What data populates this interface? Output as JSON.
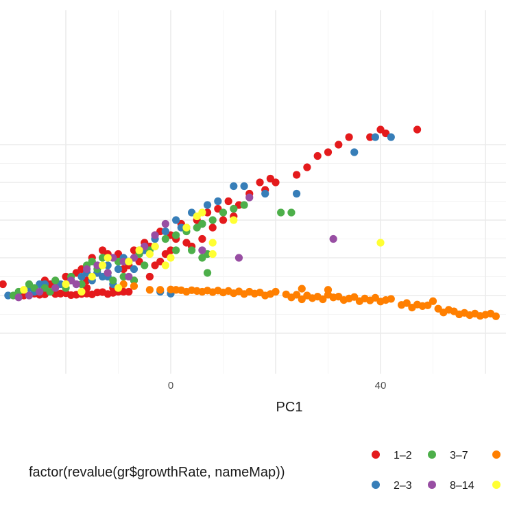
{
  "chart_data": {
    "type": "scatter",
    "title": "",
    "xlabel": "PC1",
    "ylabel": "",
    "xlim": [
      -32,
      63
    ],
    "ylim": [
      -20,
      45
    ],
    "x_ticks": [
      -20,
      0,
      20,
      40,
      60
    ],
    "x_tick_labels": [
      "",
      "0",
      "",
      "40",
      ""
    ],
    "y_ticks": [
      -10,
      0,
      10,
      20,
      30,
      40
    ],
    "grid": true,
    "legend": {
      "title": "factor(revalue(gr$growthRate, nameMap))",
      "position": "bottom",
      "entries": [
        {
          "label": "1–2",
          "color": "#E41A1C"
        },
        {
          "label": "2–3",
          "color": "#377EB8"
        },
        {
          "label": "3–7",
          "color": "#4DAF4A"
        },
        {
          "label": "8–14",
          "color": "#984EA3"
        },
        {
          "label": "",
          "color": "#FF7F00"
        },
        {
          "label": "",
          "color": "#FFFF33"
        }
      ]
    },
    "series": [
      {
        "name": "1–2",
        "color": "#E41A1C",
        "points": [
          [
            -32,
            3
          ],
          [
            -28,
            0
          ],
          [
            -26,
            0.5
          ],
          [
            -24,
            0.3
          ],
          [
            -22,
            0.4
          ],
          [
            -20,
            0.6
          ],
          [
            -18,
            0.2
          ],
          [
            -16,
            0.5
          ],
          [
            -14,
            0.8
          ],
          [
            -12,
            0.4
          ],
          [
            -10,
            1
          ],
          [
            -25,
            0.2
          ],
          [
            -21,
            0.5
          ],
          [
            -15,
            0.3
          ],
          [
            -19,
            0.1
          ],
          [
            -13,
            0.9
          ],
          [
            -11,
            0.7
          ],
          [
            -8,
            1
          ],
          [
            -17,
            0.4
          ],
          [
            -20,
            5
          ],
          [
            -18,
            6
          ],
          [
            -16,
            4
          ],
          [
            -22,
            3
          ],
          [
            -17,
            7
          ],
          [
            -15,
            10
          ],
          [
            -12,
            11
          ],
          [
            -10,
            11
          ],
          [
            -7,
            12
          ],
          [
            -5,
            14
          ],
          [
            -3,
            16
          ],
          [
            -4,
            13
          ],
          [
            -2,
            17
          ],
          [
            0,
            16
          ],
          [
            2,
            19
          ],
          [
            3,
            18
          ],
          [
            5,
            20
          ],
          [
            7,
            22
          ],
          [
            9,
            23
          ],
          [
            11,
            25
          ],
          [
            13,
            24
          ],
          [
            15,
            27
          ],
          [
            18,
            28
          ],
          [
            20,
            30
          ],
          [
            17,
            30
          ],
          [
            19,
            31
          ],
          [
            24,
            32
          ],
          [
            26,
            34
          ],
          [
            28,
            37
          ],
          [
            30,
            38
          ],
          [
            32,
            40
          ],
          [
            34,
            42
          ],
          [
            38,
            42
          ],
          [
            40,
            44
          ],
          [
            41,
            43
          ],
          [
            47,
            44
          ],
          [
            -8,
            8
          ],
          [
            -6,
            9
          ],
          [
            -10,
            10
          ],
          [
            -13,
            12
          ],
          [
            -9,
            7
          ],
          [
            -3,
            8
          ],
          [
            -1,
            11
          ],
          [
            3,
            14
          ],
          [
            4,
            13
          ],
          [
            6,
            15
          ],
          [
            8,
            18
          ],
          [
            10,
            20
          ],
          [
            12,
            21
          ],
          [
            1,
            15
          ],
          [
            -2,
            9
          ],
          [
            -4,
            5
          ],
          [
            -23,
            3
          ],
          [
            -24,
            4
          ],
          [
            -9,
            1
          ],
          [
            0,
            12
          ],
          [
            6,
            19
          ],
          [
            -14,
            6
          ],
          [
            -11,
            2
          ],
          [
            -7,
            4
          ],
          [
            -16,
            2
          ]
        ]
      },
      {
        "name": "2–3",
        "color": "#377EB8",
        "points": [
          [
            -31,
            0
          ],
          [
            -27,
            2
          ],
          [
            -25,
            3
          ],
          [
            -21,
            3
          ],
          [
            -19,
            4
          ],
          [
            -17,
            5
          ],
          [
            -16,
            6
          ],
          [
            -14,
            6
          ],
          [
            -12,
            5
          ],
          [
            -10,
            7
          ],
          [
            -8,
            9
          ],
          [
            -5,
            12
          ],
          [
            -3,
            15
          ],
          [
            -1,
            17
          ],
          [
            1,
            20
          ],
          [
            4,
            22
          ],
          [
            7,
            24
          ],
          [
            9,
            25
          ],
          [
            12,
            29
          ],
          [
            14,
            29
          ],
          [
            18,
            27
          ],
          [
            24,
            27
          ],
          [
            35,
            38
          ],
          [
            39,
            42
          ],
          [
            42,
            42
          ],
          [
            -15,
            4
          ],
          [
            -13,
            5
          ],
          [
            -11,
            3
          ],
          [
            -20,
            2
          ],
          [
            -18,
            3
          ],
          [
            -2,
            1
          ],
          [
            0,
            0.5
          ],
          [
            2,
            18
          ],
          [
            6,
            19
          ],
          [
            -6,
            12
          ],
          [
            -9,
            10
          ],
          [
            -7,
            7
          ],
          [
            -12,
            8
          ],
          [
            -24,
            3
          ],
          [
            -26,
            1
          ]
        ]
      },
      {
        "name": "3–7",
        "color": "#4DAF4A",
        "points": [
          [
            -30,
            0
          ],
          [
            -29,
            1
          ],
          [
            -27,
            3
          ],
          [
            -24,
            2
          ],
          [
            -22,
            4
          ],
          [
            -19,
            5
          ],
          [
            -16,
            8
          ],
          [
            -14,
            7
          ],
          [
            -12,
            6
          ],
          [
            -10,
            9
          ],
          [
            -8,
            9
          ],
          [
            -6,
            11
          ],
          [
            -4,
            12
          ],
          [
            -3,
            13
          ],
          [
            -1,
            15
          ],
          [
            1,
            16
          ],
          [
            3,
            17
          ],
          [
            5,
            18
          ],
          [
            6,
            19
          ],
          [
            8,
            20
          ],
          [
            10,
            22
          ],
          [
            12,
            23
          ],
          [
            14,
            24
          ],
          [
            21,
            22
          ],
          [
            23,
            22
          ],
          [
            4,
            12
          ],
          [
            6,
            10
          ],
          [
            7,
            11
          ],
          [
            7,
            6
          ],
          [
            1,
            12
          ],
          [
            -15,
            9
          ],
          [
            -13,
            10
          ],
          [
            -9,
            5
          ],
          [
            -7,
            4
          ],
          [
            -5,
            8
          ],
          [
            -11,
            4
          ],
          [
            -17,
            3
          ],
          [
            -20,
            2
          ],
          [
            -23,
            1
          ],
          [
            -26,
            2
          ]
        ]
      },
      {
        "name": "8–14",
        "color": "#984EA3",
        "points": [
          [
            -29,
            -0.5
          ],
          [
            -27,
            0
          ],
          [
            -25,
            1
          ],
          [
            -22,
            2
          ],
          [
            -19,
            4
          ],
          [
            -16,
            7
          ],
          [
            -14,
            8
          ],
          [
            -11,
            10
          ],
          [
            -9,
            9
          ],
          [
            -7,
            10
          ],
          [
            -5,
            13
          ],
          [
            -3,
            16
          ],
          [
            -1,
            19
          ],
          [
            6,
            12
          ],
          [
            13,
            10
          ],
          [
            15,
            26
          ],
          [
            31,
            15
          ],
          [
            -12,
            6
          ],
          [
            -18,
            3
          ],
          [
            -8,
            5
          ]
        ]
      },
      {
        "name": "",
        "color": "#FF7F00",
        "points": [
          [
            -9,
            3
          ],
          [
            -7,
            2.5
          ],
          [
            -4,
            1.5
          ],
          [
            -2,
            1.5
          ],
          [
            0,
            1.6
          ],
          [
            1,
            1.5
          ],
          [
            2,
            1.4
          ],
          [
            3,
            1
          ],
          [
            4,
            1.4
          ],
          [
            5,
            1.2
          ],
          [
            6,
            1
          ],
          [
            7,
            1.3
          ],
          [
            8,
            0.9
          ],
          [
            9,
            1.3
          ],
          [
            10,
            0.8
          ],
          [
            11,
            1.2
          ],
          [
            12,
            0.6
          ],
          [
            13,
            1.1
          ],
          [
            14,
            0.4
          ],
          [
            15,
            1
          ],
          [
            16,
            0.5
          ],
          [
            17,
            0.8
          ],
          [
            18,
            0
          ],
          [
            19,
            0.4
          ],
          [
            20,
            1
          ],
          [
            22,
            0.3
          ],
          [
            23,
            -0.5
          ],
          [
            24,
            0.2
          ],
          [
            25,
            -1
          ],
          [
            26,
            0
          ],
          [
            27,
            -0.7
          ],
          [
            28,
            -0.3
          ],
          [
            29,
            -1
          ],
          [
            30,
            0.2
          ],
          [
            31,
            -0.5
          ],
          [
            32,
            -0.3
          ],
          [
            33,
            -1.2
          ],
          [
            34,
            -0.8
          ],
          [
            35,
            -0.4
          ],
          [
            36,
            -1.5
          ],
          [
            37,
            -0.8
          ],
          [
            38,
            -1.3
          ],
          [
            39,
            -0.6
          ],
          [
            40,
            -1.6
          ],
          [
            41,
            -1.2
          ],
          [
            42,
            -0.9
          ],
          [
            44,
            -2.5
          ],
          [
            45,
            -2
          ],
          [
            46,
            -3.2
          ],
          [
            47,
            -2.4
          ],
          [
            48,
            -2.8
          ],
          [
            49,
            -2.6
          ],
          [
            50,
            -1.5
          ],
          [
            51,
            -3.5
          ],
          [
            52,
            -4.5
          ],
          [
            53,
            -3.8
          ],
          [
            54,
            -4.2
          ],
          [
            55,
            -5
          ],
          [
            56,
            -4.6
          ],
          [
            57,
            -5.2
          ],
          [
            58,
            -4.8
          ],
          [
            59,
            -5.4
          ],
          [
            60,
            -5.1
          ],
          [
            61,
            -4.8
          ],
          [
            62,
            -5.5
          ],
          [
            25,
            1.8
          ],
          [
            30,
            1.5
          ]
        ]
      },
      {
        "name": "",
        "color": "#FFFF33",
        "points": [
          [
            -28,
            1.5
          ],
          [
            -20,
            3
          ],
          [
            -15,
            5
          ],
          [
            -13,
            8
          ],
          [
            -12,
            10
          ],
          [
            -8,
            9
          ],
          [
            -6,
            12
          ],
          [
            -3,
            13
          ],
          [
            -1,
            8
          ],
          [
            0,
            10
          ],
          [
            3,
            18
          ],
          [
            5,
            21
          ],
          [
            6,
            22
          ],
          [
            8,
            14
          ],
          [
            8,
            11
          ],
          [
            12,
            20
          ],
          [
            40,
            14
          ],
          [
            -17,
            1
          ],
          [
            -10,
            2
          ],
          [
            -4,
            11
          ]
        ]
      }
    ]
  }
}
